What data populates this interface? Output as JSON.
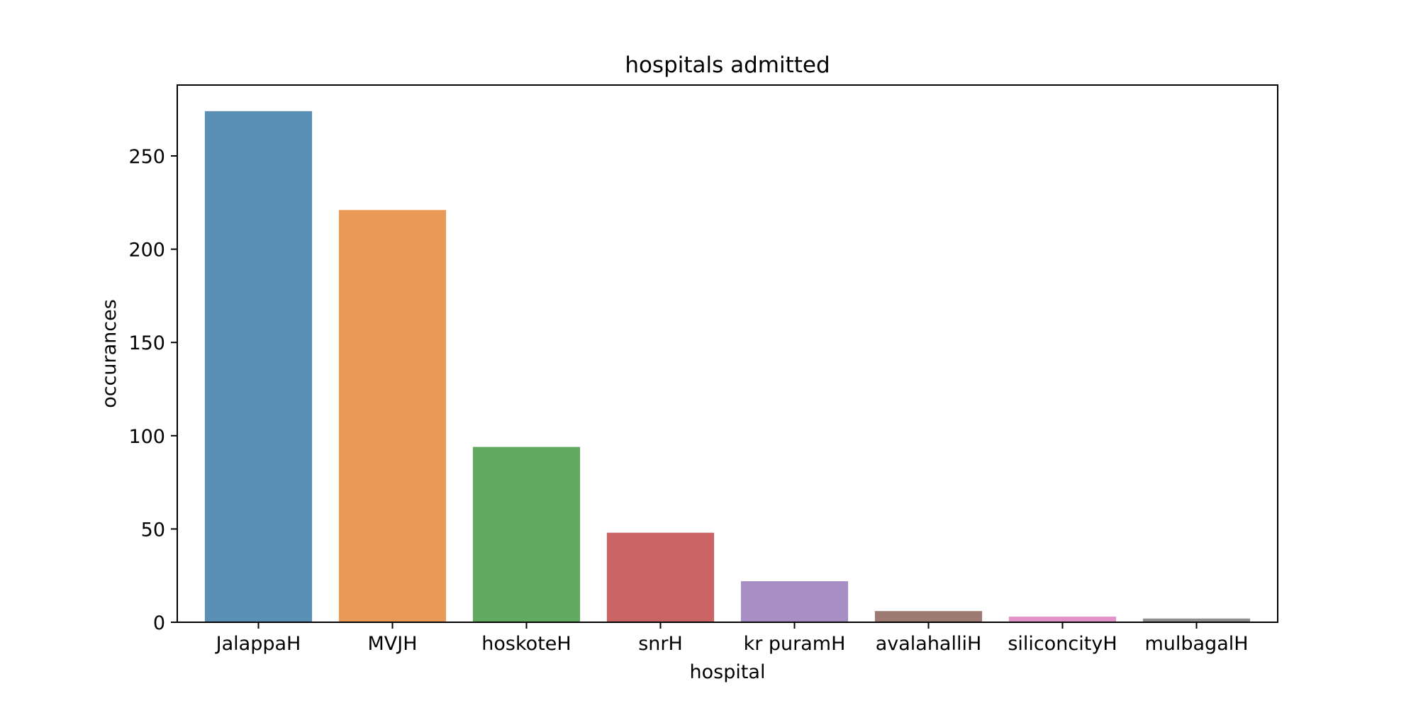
{
  "chart_data": {
    "type": "bar",
    "title": "hospitals admitted",
    "xlabel": "hospital",
    "ylabel": "occurances",
    "categories": [
      "JalappaH",
      "MVJH",
      "hoskoteH",
      "snrH",
      "kr puramH",
      "avalahalliH",
      "siliconcityH",
      "mulbagalH"
    ],
    "values": [
      274,
      221,
      94,
      48,
      22,
      6,
      3,
      2
    ],
    "colors": [
      "#5b90b6",
      "#e89a56",
      "#62aa62",
      "#cb6464",
      "#a78fc5",
      "#9d7b72",
      "#e291c9",
      "#8f8f8f"
    ],
    "ylim": [
      0,
      288
    ],
    "yticks": [
      0,
      50,
      100,
      150,
      200,
      250
    ],
    "grid": false,
    "legend": "none"
  }
}
